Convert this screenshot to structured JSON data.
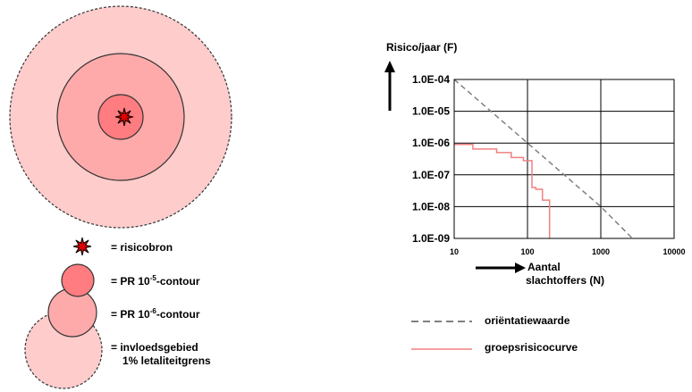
{
  "colors": {
    "outer_zone": "#FFCCCC",
    "middle_zone": "#FFAAAA",
    "inner_zone": "#FF7C80",
    "source_red": "#E00000",
    "orientation_line": "#808080",
    "group_risk_curve": "#F08080"
  },
  "risk_map_legend": {
    "source": "= risicobron",
    "pr5_prefix": "= PR 10",
    "pr5_exp": "-5",
    "pr5_suffix": "-contour",
    "pr6_prefix": "= PR 10",
    "pr6_exp": "-6",
    "pr6_suffix": "-contour",
    "influence_line1": "= invloedsgebied",
    "influence_line2": "1% letaliteitgrens"
  },
  "chart_data": {
    "type": "line",
    "x_scale": "log",
    "y_scale": "log",
    "ylabel": "Risico/jaar (F)",
    "xlabel_line1": "Aantal",
    "xlabel_line2": "slachtoffers (N)",
    "xlim": [
      10,
      10000
    ],
    "ylim": [
      1e-09,
      0.0001
    ],
    "x_ticks": [
      10,
      100,
      1000,
      10000
    ],
    "x_tick_labels": [
      "10",
      "100",
      "1000",
      "10000"
    ],
    "y_ticks": [
      0.0001,
      1e-05,
      1e-06,
      1e-07,
      1e-08,
      1e-09
    ],
    "y_tick_labels": [
      "1.0E-04",
      "1.0E-05",
      "1.0E-06",
      "1.0E-07",
      "1.0E-08",
      "1.0E-09"
    ],
    "grid": "major gridlines",
    "series": [
      {
        "name": "oriëntatiewaarde",
        "style": "dashed",
        "x": [
          10,
          100,
          1000,
          2700
        ],
        "y": [
          0.0001,
          1e-06,
          1e-08,
          1e-09
        ]
      },
      {
        "name": "groepsrisicocurve",
        "style": "solid-step",
        "x": [
          10,
          18,
          18,
          38,
          38,
          60,
          60,
          88,
          88,
          115,
          115,
          130,
          130,
          160,
          160,
          200,
          200
        ],
        "y": [
          9e-07,
          9e-07,
          6.5e-07,
          6.5e-07,
          5e-07,
          5e-07,
          3.5e-07,
          3.5e-07,
          2.8e-07,
          2.8e-07,
          4e-08,
          4e-08,
          3.5e-08,
          3.5e-08,
          1.6e-08,
          1.6e-08,
          1e-09
        ]
      }
    ]
  }
}
